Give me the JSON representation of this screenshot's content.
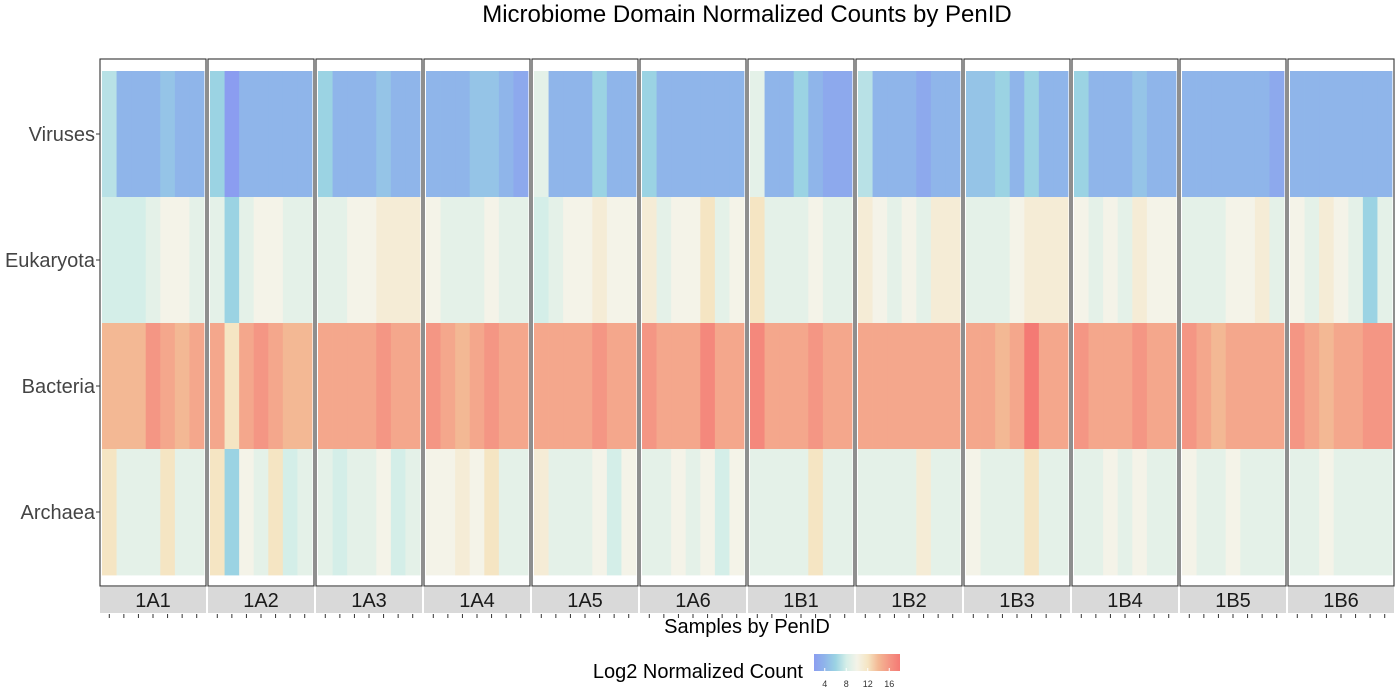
{
  "chart_data": {
    "type": "heatmap",
    "title": "Microbiome Domain Normalized Counts by PenID",
    "xlabel": "Samples by PenID",
    "ylabel": "",
    "rows": [
      "Viruses",
      "Eukaryota",
      "Bacteria",
      "Archaea"
    ],
    "facets": [
      {
        "label": "1A1",
        "values": [
          [
            7,
            4,
            4,
            4,
            5,
            4,
            4
          ],
          [
            8,
            8,
            8,
            9,
            10,
            10,
            9
          ],
          [
            14,
            14,
            14,
            16,
            15,
            14,
            15
          ],
          [
            12,
            9,
            9,
            9,
            12,
            9,
            9
          ]
        ]
      },
      {
        "label": "1A2",
        "values": [
          [
            6,
            2,
            4,
            4,
            4,
            4,
            4
          ],
          [
            9,
            6,
            9,
            10,
            10,
            9,
            9
          ],
          [
            15,
            12,
            15,
            16,
            15,
            14,
            14
          ],
          [
            12,
            6,
            10,
            9,
            12,
            8,
            9
          ]
        ]
      },
      {
        "label": "1A3",
        "values": [
          [
            6,
            4,
            4,
            4,
            5,
            4,
            4
          ],
          [
            9,
            9,
            10,
            10,
            11,
            11,
            11
          ],
          [
            15,
            15,
            15,
            15,
            16,
            15,
            15
          ],
          [
            9,
            8,
            9,
            9,
            10,
            8,
            9
          ]
        ]
      },
      {
        "label": "1A4",
        "values": [
          [
            4,
            4,
            4,
            5,
            5,
            4,
            3
          ],
          [
            10,
            9,
            9,
            9,
            10,
            9,
            9
          ],
          [
            16,
            15,
            14,
            15,
            16,
            15,
            15
          ],
          [
            10,
            10,
            11,
            10,
            12,
            9,
            9
          ]
        ]
      },
      {
        "label": "1A5",
        "values": [
          [
            9,
            4,
            4,
            4,
            6,
            4,
            4
          ],
          [
            8,
            9,
            10,
            10,
            11,
            10,
            10
          ],
          [
            15,
            15,
            15,
            15,
            16,
            15,
            15
          ],
          [
            11,
            9,
            9,
            9,
            10,
            8,
            10
          ]
        ]
      },
      {
        "label": "1A6",
        "values": [
          [
            6,
            4,
            4,
            4,
            4,
            4,
            4
          ],
          [
            11,
            9,
            10,
            10,
            12,
            9,
            10
          ],
          [
            16,
            15,
            15,
            15,
            17,
            15,
            15
          ],
          [
            9,
            9,
            10,
            9,
            10,
            8,
            10
          ]
        ]
      },
      {
        "label": "1B1",
        "values": [
          [
            9,
            4,
            4,
            6,
            4,
            3,
            3
          ],
          [
            12,
            9,
            9,
            9,
            10,
            9,
            9
          ],
          [
            17,
            15,
            15,
            15,
            16,
            15,
            15
          ],
          [
            9,
            9,
            9,
            9,
            12,
            9,
            9
          ]
        ]
      },
      {
        "label": "1B2",
        "values": [
          [
            7,
            4,
            4,
            4,
            3,
            4,
            4
          ],
          [
            11,
            10,
            9,
            10,
            9,
            11,
            11
          ],
          [
            15,
            15,
            15,
            15,
            15,
            15,
            15
          ],
          [
            9,
            9,
            9,
            9,
            11,
            9,
            9
          ]
        ]
      },
      {
        "label": "1B3",
        "values": [
          [
            5,
            5,
            6,
            4,
            6,
            4,
            4
          ],
          [
            9,
            9,
            9,
            10,
            11,
            11,
            11
          ],
          [
            15,
            15,
            14,
            15,
            18,
            15,
            15
          ],
          [
            10,
            9,
            9,
            9,
            12,
            9,
            9
          ]
        ]
      },
      {
        "label": "1B4",
        "values": [
          [
            6,
            4,
            4,
            4,
            5,
            4,
            4
          ],
          [
            10,
            9,
            10,
            9,
            11,
            10,
            10
          ],
          [
            16,
            15,
            15,
            15,
            16,
            15,
            15
          ],
          [
            9,
            9,
            10,
            9,
            10,
            9,
            9
          ]
        ]
      },
      {
        "label": "1B5",
        "values": [
          [
            4,
            4,
            4,
            4,
            4,
            4,
            3
          ],
          [
            9,
            9,
            9,
            10,
            10,
            11,
            9
          ],
          [
            16,
            15,
            14,
            15,
            15,
            15,
            15
          ],
          [
            10,
            9,
            9,
            10,
            9,
            9,
            9
          ]
        ]
      },
      {
        "label": "1B6",
        "values": [
          [
            4,
            4,
            4,
            4,
            4,
            4,
            4
          ],
          [
            10,
            9,
            11,
            10,
            9,
            6,
            9
          ],
          [
            16,
            15,
            14,
            15,
            15,
            16,
            16
          ],
          [
            9,
            9,
            10,
            9,
            9,
            9,
            9
          ]
        ]
      }
    ],
    "color_scale": {
      "title": "Log2 Normalized Count",
      "ticks": [
        4,
        8,
        12,
        16
      ],
      "domain": [
        2,
        18
      ],
      "stops": [
        {
          "value": 2,
          "color": "#8b9df0"
        },
        {
          "value": 4,
          "color": "#8fb5ea"
        },
        {
          "value": 6,
          "color": "#9bd3e3"
        },
        {
          "value": 8,
          "color": "#d4eee8"
        },
        {
          "value": 10,
          "color": "#f4f3e8"
        },
        {
          "value": 12,
          "color": "#f5e5c3"
        },
        {
          "value": 14,
          "color": "#f3b894"
        },
        {
          "value": 16,
          "color": "#f49684"
        },
        {
          "value": 18,
          "color": "#f47a74"
        }
      ]
    },
    "grid": false,
    "legend_position": "bottom"
  },
  "colors": {
    "strip_background": "#d9d9d9",
    "panel_border": "#333333"
  }
}
